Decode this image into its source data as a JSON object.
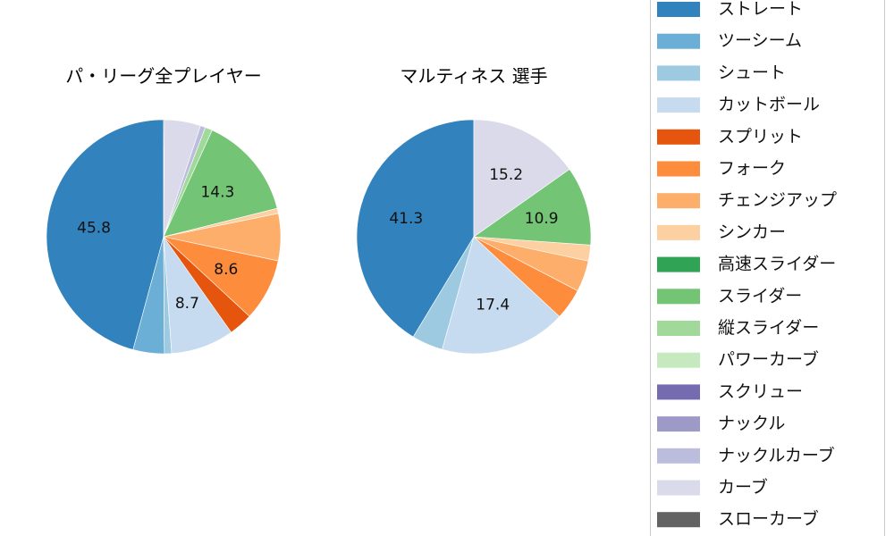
{
  "chart_data": [
    {
      "type": "pie",
      "title": "パ・リーグ全プレイヤー",
      "start_angle": 90,
      "direction": "counterclockwise",
      "slices": [
        {
          "name": "ストレート",
          "value": 45.8,
          "label": "45.8"
        },
        {
          "name": "ツーシーム",
          "value": 4.3
        },
        {
          "name": "シュート",
          "value": 1.0
        },
        {
          "name": "カットボール",
          "value": 8.7,
          "label": "8.7"
        },
        {
          "name": "スプリット",
          "value": 3.3
        },
        {
          "name": "フォーク",
          "value": 8.6,
          "label": "8.6"
        },
        {
          "name": "チェンジアップ",
          "value": 6.5
        },
        {
          "name": "シンカー",
          "value": 0.7
        },
        {
          "name": "スライダー",
          "value": 14.3,
          "label": "14.3"
        },
        {
          "name": "縦スライダー",
          "value": 1.0
        },
        {
          "name": "ナックルカーブ",
          "value": 0.7
        },
        {
          "name": "カーブ",
          "value": 5.0
        },
        {
          "name": "スローカーブ",
          "value": 0.1
        }
      ]
    },
    {
      "type": "pie",
      "title": "マルティネス  選手",
      "start_angle": 90,
      "direction": "counterclockwise",
      "slices": [
        {
          "name": "ストレート",
          "value": 41.3,
          "label": "41.3"
        },
        {
          "name": "シュート",
          "value": 4.3
        },
        {
          "name": "カットボール",
          "value": 17.4,
          "label": "17.4"
        },
        {
          "name": "フォーク",
          "value": 4.3
        },
        {
          "name": "チェンジアップ",
          "value": 4.3
        },
        {
          "name": "シンカー",
          "value": 2.2
        },
        {
          "name": "スライダー",
          "value": 10.9,
          "label": "10.9"
        },
        {
          "name": "カーブ",
          "value": 15.2,
          "label": "15.2"
        }
      ]
    }
  ],
  "legend": {
    "placement": "right",
    "entries": [
      {
        "name": "ストレート",
        "color": "#3182bd"
      },
      {
        "name": "ツーシーム",
        "color": "#6baed6"
      },
      {
        "name": "シュート",
        "color": "#9ecae1"
      },
      {
        "name": "カットボール",
        "color": "#c6dbef"
      },
      {
        "name": "スプリット",
        "color": "#e6550d"
      },
      {
        "name": "フォーク",
        "color": "#fd8d3c"
      },
      {
        "name": "チェンジアップ",
        "color": "#fdae6b"
      },
      {
        "name": "シンカー",
        "color": "#fdd0a2"
      },
      {
        "name": "高速スライダー",
        "color": "#31a354"
      },
      {
        "name": "スライダー",
        "color": "#74c476"
      },
      {
        "name": "縦スライダー",
        "color": "#a1d99b"
      },
      {
        "name": "パワーカーブ",
        "color": "#c7e9c0"
      },
      {
        "name": "スクリュー",
        "color": "#756bb1"
      },
      {
        "name": "ナックル",
        "color": "#9e9ac8"
      },
      {
        "name": "ナックルカーブ",
        "color": "#bcbddc"
      },
      {
        "name": "カーブ",
        "color": "#dadaeb"
      },
      {
        "name": "スローカーブ",
        "color": "#636363"
      }
    ]
  }
}
